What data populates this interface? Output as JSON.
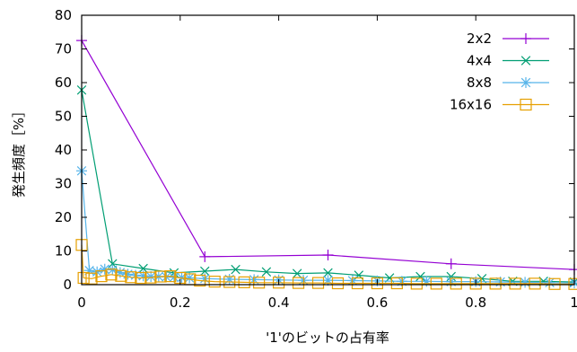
{
  "chart_data": {
    "type": "line",
    "title": "",
    "xlabel": "'1'のビットの占有率",
    "ylabel": "発生頻度［%］",
    "xlim": [
      0,
      1
    ],
    "ylim": [
      0,
      80
    ],
    "xticks": [
      0,
      0.2,
      0.4,
      0.6,
      0.8,
      1
    ],
    "xtick_labels": [
      "0",
      "0.2",
      "0.4",
      "0.6",
      "0.8",
      "1"
    ],
    "yticks": [
      0,
      10,
      20,
      30,
      40,
      50,
      60,
      70,
      80
    ],
    "ytick_labels": [
      "0",
      "10",
      "20",
      "30",
      "40",
      "50",
      "60",
      "70",
      "80"
    ],
    "grid": false,
    "legend_position": "top-right",
    "series": [
      {
        "name": "2x2",
        "color": "#9400d3",
        "marker": "plus",
        "points": [
          [
            0,
            72.5
          ],
          [
            0.25,
            8.3
          ],
          [
            0.5,
            8.8
          ],
          [
            0.75,
            6.2
          ],
          [
            1,
            4.5
          ]
        ]
      },
      {
        "name": "4x4",
        "color": "#009e73",
        "marker": "cross",
        "points": [
          [
            0,
            57.8
          ],
          [
            0.0625,
            6.2
          ],
          [
            0.125,
            4.8
          ],
          [
            0.1875,
            3.5
          ],
          [
            0.25,
            4.0
          ],
          [
            0.3125,
            4.5
          ],
          [
            0.375,
            3.8
          ],
          [
            0.4375,
            3.3
          ],
          [
            0.5,
            3.5
          ],
          [
            0.5625,
            2.8
          ],
          [
            0.625,
            2.0
          ],
          [
            0.6875,
            2.4
          ],
          [
            0.75,
            2.4
          ],
          [
            0.8125,
            1.8
          ],
          [
            0.875,
            1.0
          ],
          [
            0.9375,
            1.0
          ],
          [
            1,
            0.8
          ]
        ]
      },
      {
        "name": "8x8",
        "color": "#56b4e9",
        "marker": "star",
        "points": [
          [
            0,
            33.8
          ],
          [
            0.0156,
            4.2
          ],
          [
            0.0313,
            3.8
          ],
          [
            0.0469,
            4.6
          ],
          [
            0.0625,
            4.4
          ],
          [
            0.0781,
            3.6
          ],
          [
            0.0938,
            3.1
          ],
          [
            0.1094,
            2.8
          ],
          [
            0.125,
            2.6
          ],
          [
            0.1406,
            2.4
          ],
          [
            0.1563,
            2.4
          ],
          [
            0.1719,
            2.3
          ],
          [
            0.1875,
            2.2
          ],
          [
            0.2031,
            2.1
          ],
          [
            0.2188,
            2.0
          ],
          [
            0.25,
            1.8
          ],
          [
            0.3,
            1.6
          ],
          [
            0.35,
            1.5
          ],
          [
            0.4,
            1.4
          ],
          [
            0.45,
            1.3
          ],
          [
            0.5,
            1.3
          ],
          [
            0.55,
            1.2
          ],
          [
            0.6,
            1.1
          ],
          [
            0.65,
            1.0
          ],
          [
            0.7,
            1.0
          ],
          [
            0.75,
            0.9
          ],
          [
            0.8,
            0.9
          ],
          [
            0.85,
            0.8
          ],
          [
            0.9,
            0.7
          ],
          [
            0.95,
            0.6
          ],
          [
            1,
            0.5
          ]
        ]
      },
      {
        "name": "16x16",
        "color": "#e69f00",
        "marker": "square",
        "points": [
          [
            0,
            11.8
          ],
          [
            0.0039,
            2.0
          ],
          [
            0.02,
            1.8
          ],
          [
            0.04,
            2.5
          ],
          [
            0.06,
            3.0
          ],
          [
            0.08,
            2.6
          ],
          [
            0.1,
            2.2
          ],
          [
            0.12,
            2.0
          ],
          [
            0.14,
            2.1
          ],
          [
            0.16,
            2.4
          ],
          [
            0.18,
            2.5
          ],
          [
            0.2,
            2.0
          ],
          [
            0.22,
            1.6
          ],
          [
            0.24,
            1.2
          ],
          [
            0.27,
            0.9
          ],
          [
            0.3,
            0.8
          ],
          [
            0.33,
            0.7
          ],
          [
            0.36,
            0.6
          ],
          [
            0.4,
            0.6
          ],
          [
            0.44,
            0.5
          ],
          [
            0.48,
            0.5
          ],
          [
            0.52,
            0.4
          ],
          [
            0.56,
            0.4
          ],
          [
            0.6,
            0.4
          ],
          [
            0.64,
            0.4
          ],
          [
            0.68,
            0.3
          ],
          [
            0.72,
            0.3
          ],
          [
            0.76,
            0.3
          ],
          [
            0.8,
            0.3
          ],
          [
            0.84,
            0.3
          ],
          [
            0.88,
            0.3
          ],
          [
            0.92,
            0.3
          ],
          [
            0.96,
            0.2
          ],
          [
            1,
            0.2
          ]
        ]
      }
    ]
  }
}
